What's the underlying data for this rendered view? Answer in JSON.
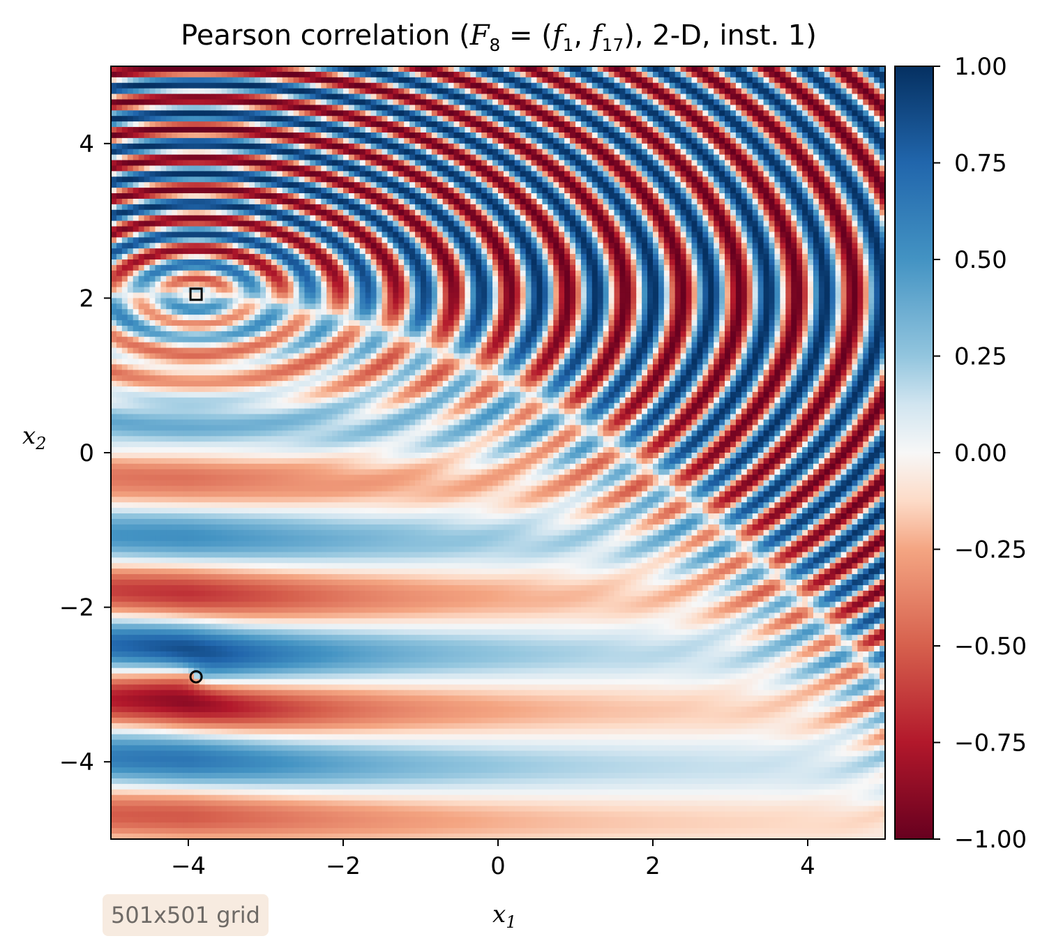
{
  "chart_data": {
    "type": "heatmap",
    "title_parts": {
      "prefix": "Pearson correlation (",
      "F": "F",
      "F_sub": "8",
      "eq": " = (",
      "f1": "f",
      "f1_sub": "1",
      "comma": ", ",
      "f2": "f",
      "f2_sub": "17",
      "suffix": "), 2-D, inst. 1)"
    },
    "xlabel": {
      "var": "x",
      "sub": "1"
    },
    "ylabel": {
      "var": "x",
      "sub": "2"
    },
    "xlim": [
      -5,
      5
    ],
    "ylim": [
      -5,
      5
    ],
    "xticks": [
      -4,
      -2,
      0,
      2,
      4
    ],
    "xtick_labels": [
      "−4",
      "−2",
      "0",
      "2",
      "4"
    ],
    "yticks": [
      -4,
      -2,
      0,
      2,
      4
    ],
    "ytick_labels": [
      "−4",
      "−2",
      "0",
      "2",
      "4"
    ],
    "colormap": "RdBu",
    "colorbar": {
      "range": [
        -1.0,
        1.0
      ],
      "ticks": [
        1.0,
        0.75,
        0.5,
        0.25,
        0.0,
        -0.25,
        -0.5,
        -0.75,
        -1.0
      ],
      "tick_labels": [
        "1.00",
        "0.75",
        "0.50",
        "0.25",
        "0.00",
        "−0.25",
        "−0.50",
        "−0.75",
        "−1.00"
      ],
      "colors": [
        {
          "v": -1.0,
          "c": "#67001f"
        },
        {
          "v": -0.75,
          "c": "#b2182b"
        },
        {
          "v": -0.5,
          "c": "#d6604d"
        },
        {
          "v": -0.25,
          "c": "#f4a582"
        },
        {
          "v": -0.125,
          "c": "#fddbc7"
        },
        {
          "v": 0.0,
          "c": "#f7f7f7"
        },
        {
          "v": 0.125,
          "c": "#d1e5f0"
        },
        {
          "v": 0.25,
          "c": "#92c5de"
        },
        {
          "v": 0.5,
          "c": "#4393c3"
        },
        {
          "v": 0.75,
          "c": "#2166ac"
        },
        {
          "v": 1.0,
          "c": "#053061"
        }
      ]
    },
    "markers": [
      {
        "shape": "square",
        "x": -3.9,
        "y": 2.05
      },
      {
        "shape": "circle",
        "x": -3.9,
        "y": -2.9
      }
    ],
    "grid_note": "501x501 grid"
  }
}
